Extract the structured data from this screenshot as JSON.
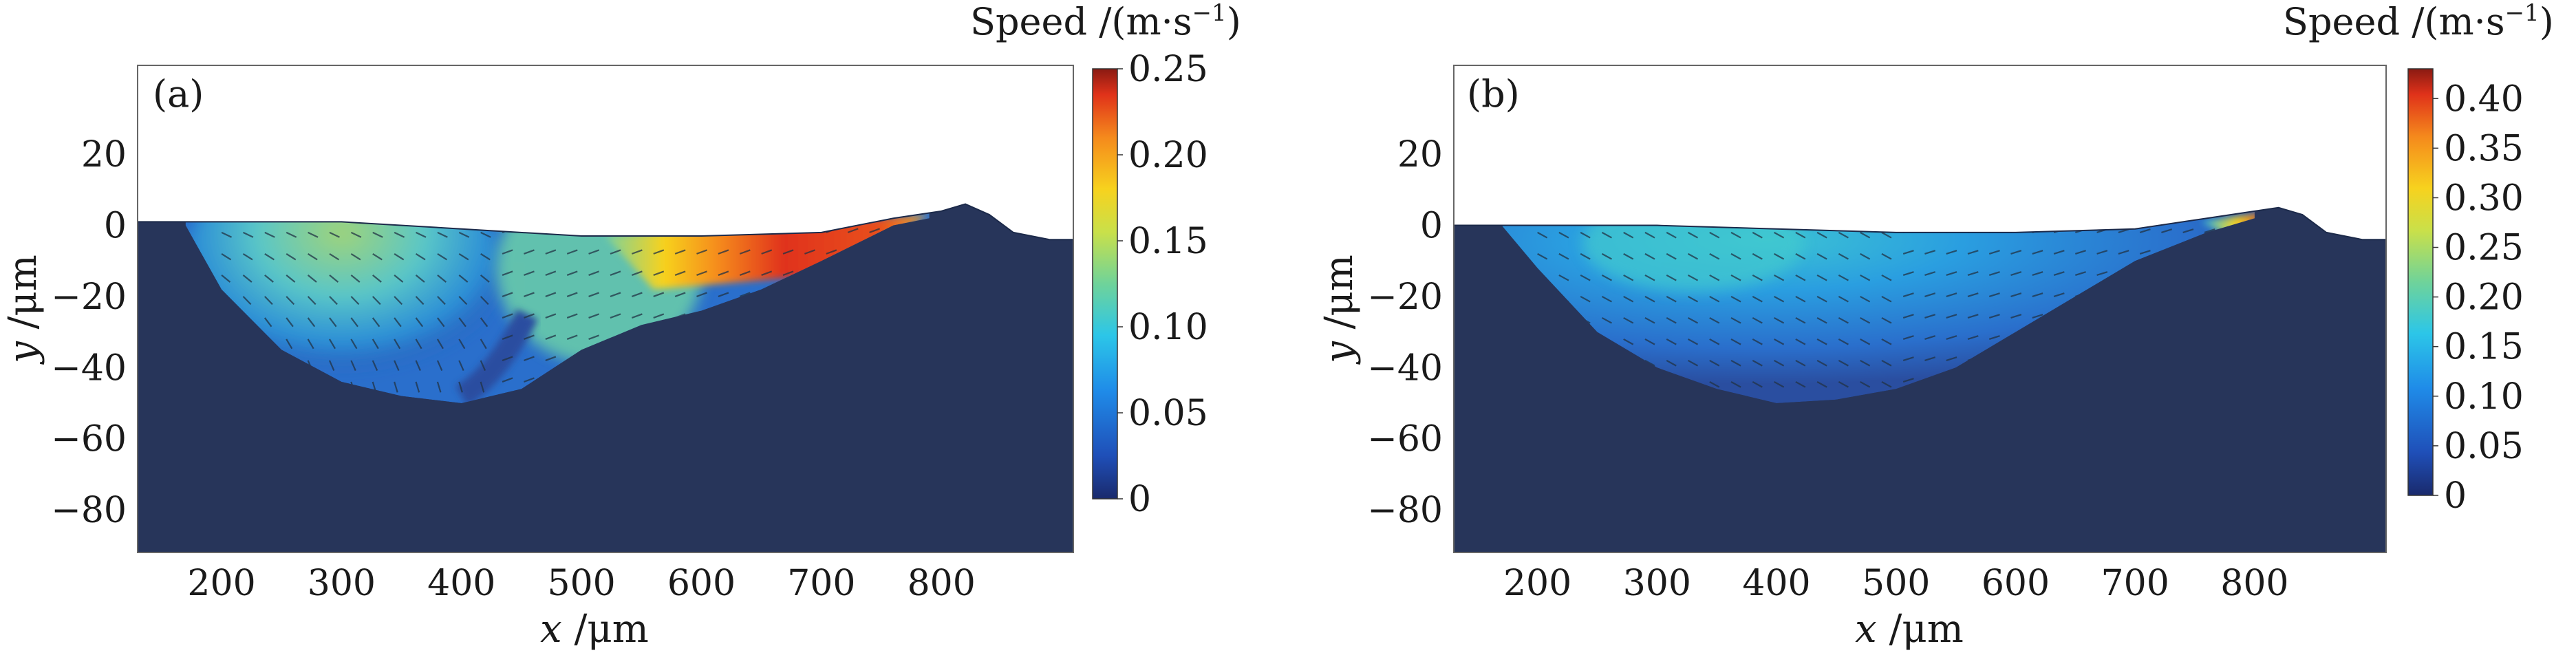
{
  "chart_data": [
    {
      "type": "heatmap",
      "panel_label": "(a)",
      "title": "",
      "xlabel_var": "x",
      "xlabel_unit": " /μm",
      "ylabel_var": "y",
      "ylabel_unit": " /μm",
      "xlim": [
        130,
        910
      ],
      "ylim": [
        -92,
        45
      ],
      "xticks": [
        "200",
        "300",
        "400",
        "500",
        "600",
        "700",
        "800"
      ],
      "xtick_values": [
        200,
        300,
        400,
        500,
        600,
        700,
        800
      ],
      "yticks": [
        "20",
        "0",
        "−20",
        "−40",
        "−60",
        "−80"
      ],
      "ytick_values": [
        20,
        0,
        -20,
        -40,
        -60,
        -80
      ],
      "colorbar": {
        "title": "Speed /(m·s",
        "title_sup": "−1",
        "title_end": ")",
        "range": [
          0,
          0.25
        ],
        "ticks": [
          "0.25",
          "0.20",
          "0.15",
          "0.10",
          "0.05",
          "0"
        ],
        "tick_values": [
          0.25,
          0.2,
          0.15,
          0.1,
          0.05,
          0
        ]
      },
      "surface_profile": {
        "x": [
          130,
          200,
          300,
          400,
          500,
          600,
          700,
          760,
          800,
          820,
          840,
          860,
          890,
          910
        ],
        "y": [
          1,
          1,
          1,
          -1,
          -3,
          -3,
          -2,
          2,
          4,
          6,
          3,
          -2,
          -4,
          -4
        ]
      },
      "melt_pool_boundary": {
        "x": [
          170,
          200,
          250,
          300,
          350,
          400,
          450,
          500,
          550,
          600,
          650,
          700,
          760,
          790
        ],
        "y": [
          0,
          -18,
          -35,
          -44,
          -48,
          -50,
          -46,
          -35,
          -28,
          -24,
          -18,
          -10,
          0,
          2
        ]
      },
      "colors": {
        "background": "#27355a",
        "axes": "#666666"
      }
    },
    {
      "type": "heatmap",
      "panel_label": "(b)",
      "title": "",
      "xlabel_var": "x",
      "xlabel_unit": " /μm",
      "ylabel_var": "y",
      "ylabel_unit": " /μm",
      "xlim": [
        130,
        910
      ],
      "ylim": [
        -92,
        45
      ],
      "xticks": [
        "200",
        "300",
        "400",
        "500",
        "600",
        "700",
        "800"
      ],
      "xtick_values": [
        200,
        300,
        400,
        500,
        600,
        700,
        800
      ],
      "yticks": [
        "20",
        "0",
        "−20",
        "−40",
        "−60",
        "−80"
      ],
      "ytick_values": [
        20,
        0,
        -20,
        -40,
        -60,
        -80
      ],
      "colorbar": {
        "title": "Speed /(m·s",
        "title_sup": "−1",
        "title_end": ")",
        "range": [
          0,
          0.43
        ],
        "ticks": [
          "0.40",
          "0.35",
          "0.30",
          "0.25",
          "0.20",
          "0.15",
          "0.10",
          "0.05",
          "0"
        ],
        "tick_values": [
          0.4,
          0.35,
          0.3,
          0.25,
          0.2,
          0.15,
          0.1,
          0.05,
          0
        ]
      },
      "surface_profile": {
        "x": [
          130,
          200,
          300,
          400,
          500,
          600,
          700,
          760,
          800,
          820,
          840,
          860,
          890,
          910
        ],
        "y": [
          0,
          0,
          0,
          -1,
          -2,
          -2,
          -1,
          2,
          4,
          5,
          3,
          -2,
          -4,
          -4
        ]
      },
      "melt_pool_boundary": {
        "x": [
          170,
          200,
          250,
          300,
          350,
          400,
          450,
          500,
          550,
          600,
          650,
          700,
          760,
          800
        ],
        "y": [
          0,
          -12,
          -30,
          -40,
          -46,
          -50,
          -49,
          -46,
          -40,
          -30,
          -20,
          -10,
          -2,
          2
        ]
      },
      "colors": {
        "background": "#27355a",
        "axes": "#666666"
      }
    }
  ]
}
